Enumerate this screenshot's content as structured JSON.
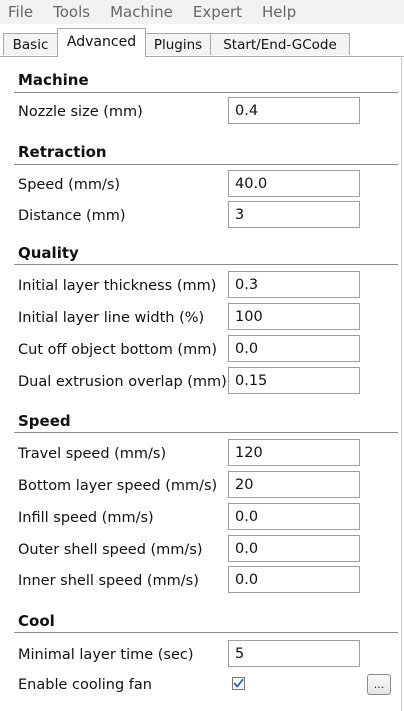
{
  "menu": [
    "File",
    "Tools",
    "Machine",
    "Expert",
    "Help"
  ],
  "tabs": [
    "Basic",
    "Advanced",
    "Plugins",
    "Start/End-GCode"
  ],
  "active_tab": "Advanced",
  "sections": {
    "machine": {
      "title": "Machine",
      "nozzle_size": {
        "label": "Nozzle size (mm)",
        "value": "0.4"
      }
    },
    "retraction": {
      "title": "Retraction",
      "speed": {
        "label": "Speed (mm/s)",
        "value": "40.0"
      },
      "distance": {
        "label": "Distance (mm)",
        "value": "3"
      }
    },
    "quality": {
      "title": "Quality",
      "initial_layer_thickness": {
        "label": "Initial layer thickness (mm)",
        "value": "0.3"
      },
      "initial_layer_line_width": {
        "label": "Initial layer line width (%)",
        "value": "100"
      },
      "cut_off_object_bottom": {
        "label": "Cut off object bottom (mm)",
        "value": "0.0"
      },
      "dual_extrusion_overlap": {
        "label": "Dual extrusion overlap (mm)",
        "value": "0.15"
      }
    },
    "speed": {
      "title": "Speed",
      "travel_speed": {
        "label": "Travel speed (mm/s)",
        "value": "120"
      },
      "bottom_layer_speed": {
        "label": "Bottom layer speed (mm/s)",
        "value": "20"
      },
      "infill_speed": {
        "label": "Infill speed (mm/s)",
        "value": "0.0"
      },
      "outer_shell_speed": {
        "label": "Outer shell speed (mm/s)",
        "value": "0.0"
      },
      "inner_shell_speed": {
        "label": "Inner shell speed (mm/s)",
        "value": "0.0"
      }
    },
    "cool": {
      "title": "Cool",
      "minimal_layer_time": {
        "label": "Minimal layer time (sec)",
        "value": "5"
      },
      "enable_cooling_fan": {
        "label": "Enable cooling fan",
        "checked": true
      },
      "more_button_label": "..."
    }
  },
  "icons": {
    "checkbox_check": "check-icon"
  },
  "colors": {
    "check_mark": "#2f5fb0",
    "menu_text": "#666666",
    "section_rule": "#8a8a8a"
  }
}
